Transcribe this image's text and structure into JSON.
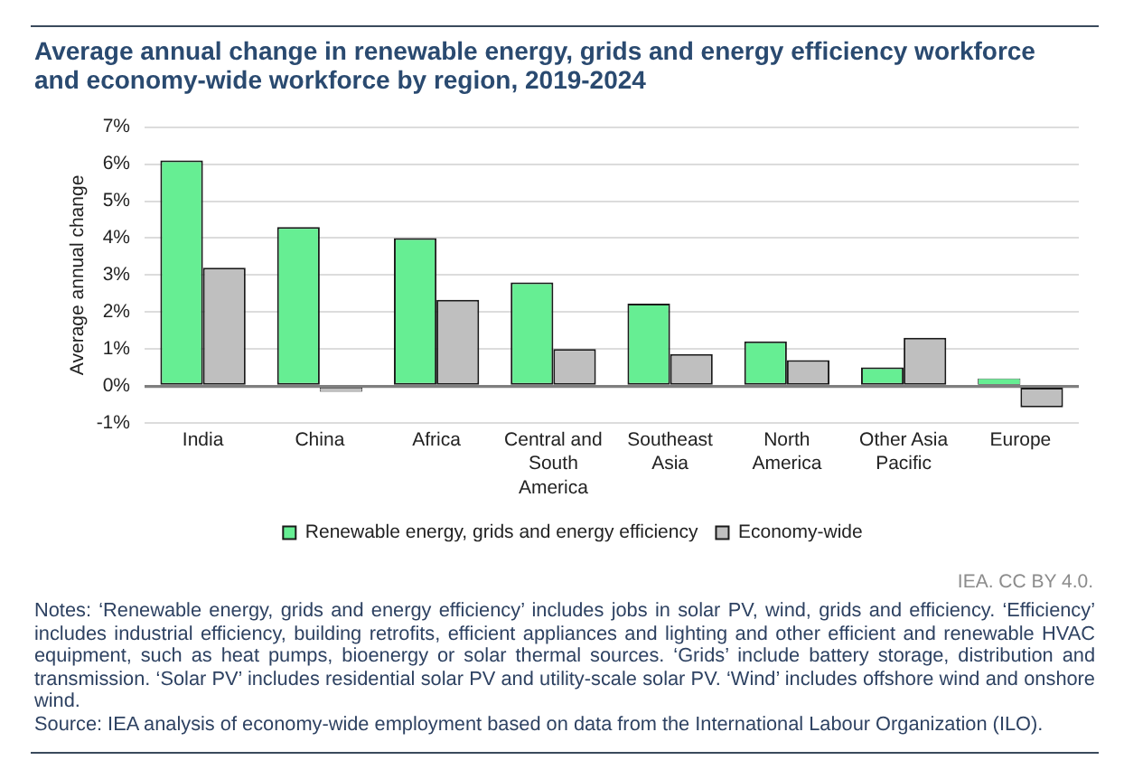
{
  "chart_data": {
    "type": "bar",
    "title": "Average annual change in renewable energy, grids and energy efficiency workforce and economy-wide workforce by region, 2019-2024",
    "ylabel": "Average annual change",
    "categories": [
      "India",
      "China",
      "Africa",
      "Central and South America",
      "Southeast Asia",
      "North America",
      "Other Asia Pacific",
      "Europe"
    ],
    "series": [
      {
        "name": "Renewable energy, grids and energy efficiency",
        "color": "#66ee93",
        "values": [
          6.1,
          4.3,
          4.0,
          2.8,
          2.23,
          1.21,
          0.51,
          0.21
        ]
      },
      {
        "name": "Economy-wide",
        "color": "#bfbfbf",
        "values": [
          3.2,
          -0.15,
          2.33,
          1.0,
          0.87,
          0.7,
          1.31,
          -0.57
        ]
      }
    ],
    "ylim": [
      -1,
      7
    ],
    "yticks": [
      {
        "value": -1,
        "label": "-1%"
      },
      {
        "value": 0,
        "label": "0%"
      },
      {
        "value": 1,
        "label": "1%"
      },
      {
        "value": 2,
        "label": "2%"
      },
      {
        "value": 3,
        "label": "3%"
      },
      {
        "value": 4,
        "label": "4%"
      },
      {
        "value": 5,
        "label": "5%"
      },
      {
        "value": 6,
        "label": "6%"
      },
      {
        "value": 7,
        "label": "7%"
      }
    ],
    "grid": "y",
    "legend": "bottom",
    "annotations": [
      "IEA. CC BY 4.0.",
      "Notes: ‘Renewable energy, grids and energy efficiency’ includes jobs in solar PV, wind, grids and efficiency. ‘Efficiency’ includes industrial efficiency, building retrofits, efficient appliances and lighting and other efficient and renewable HVAC equipment, such as heat pumps, bioenergy or solar thermal sources. ‘Grids’ include battery storage, distribution and transmission. ‘Solar PV’ includes residential solar PV and utility-scale solar PV. ‘Wind’ includes offshore wind and onshore wind.",
      "Source: IEA analysis of economy-wide employment based on data from the International Labour Organization (ILO)."
    ]
  }
}
